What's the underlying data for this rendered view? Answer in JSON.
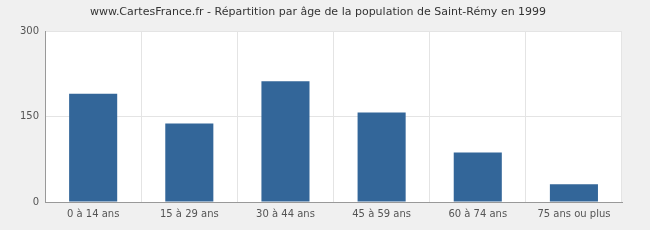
{
  "chart_data": {
    "type": "bar",
    "title": "www.CartesFrance.fr - Répartition par âge de la population de Saint-Rémy en 1999",
    "categories": [
      "0 à 14 ans",
      "15 à 29 ans",
      "30 à 44 ans",
      "45 à 59 ans",
      "60 à 74 ans",
      "75 ans ou plus"
    ],
    "values": [
      190,
      138,
      212,
      157,
      87,
      31
    ],
    "color": "#336699",
    "ylim": [
      0,
      300
    ],
    "yticks": [
      0,
      150,
      300
    ],
    "grid": true
  }
}
